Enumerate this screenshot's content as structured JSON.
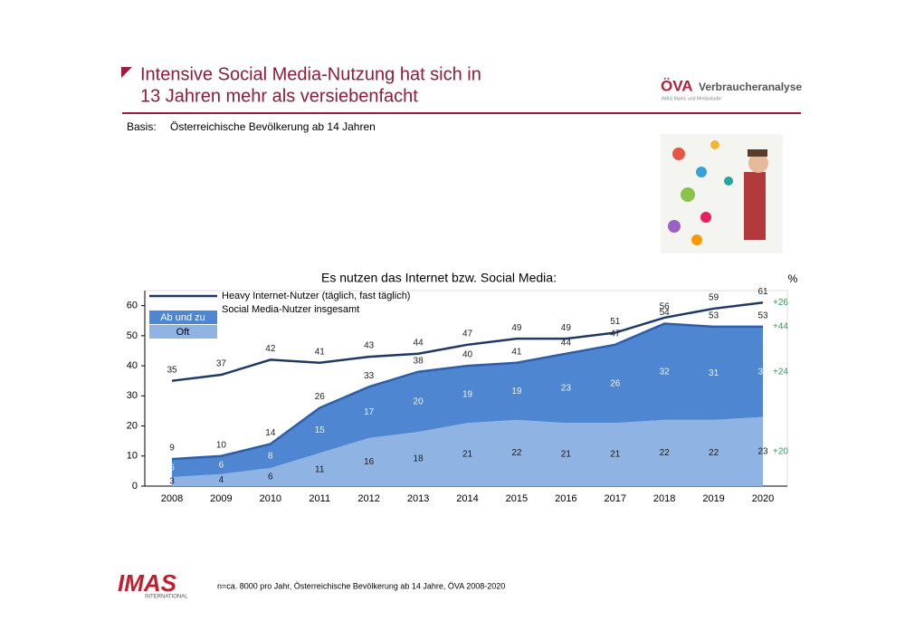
{
  "header": {
    "title_line1": "Intensive Social Media-Nutzung hat sich in",
    "title_line2": "13 Jahren mehr als versiebenfacht",
    "logo_brand": "ÖVA",
    "logo_name": "Verbraucheranalyse",
    "logo_sub": "IMAS Markt- und Mediastudie",
    "basis_label": "Basis:",
    "basis_text": "Österreichische Bevölkerung ab 14 Jahren"
  },
  "chart_data": {
    "type": "area",
    "title": "Es nutzen das Internet bzw. Social Media:",
    "unit": "%",
    "categories": [
      "2008",
      "2009",
      "2010",
      "2011",
      "2012",
      "2013",
      "2014",
      "2015",
      "2016",
      "2017",
      "2018",
      "2019",
      "2020"
    ],
    "ylim": [
      0,
      65
    ],
    "yticks": [
      0,
      10,
      20,
      30,
      40,
      50,
      60
    ],
    "change_color": "#2e9a5a",
    "series": [
      {
        "name": "Oft",
        "style": "stacked-area",
        "color": "#8fb4e3",
        "values": [
          3,
          4,
          6,
          11,
          16,
          18,
          21,
          22,
          21,
          21,
          22,
          22,
          23
        ],
        "change": "+20"
      },
      {
        "name": "Ab und zu",
        "style": "stacked-area",
        "color": "#4f86d2",
        "values": [
          6,
          6,
          8,
          15,
          17,
          20,
          19,
          19,
          23,
          26,
          32,
          31,
          30
        ],
        "change": "+24"
      },
      {
        "name": "Social Media-Nutzer insgesamt",
        "style": "line",
        "color": "#2f5ea6",
        "values": [
          9,
          10,
          14,
          26,
          33,
          38,
          40,
          41,
          44,
          47,
          54,
          53,
          53
        ],
        "change": "+44"
      },
      {
        "name": "Heavy Internet-Nutzer (täglich, fast täglich)",
        "style": "line",
        "color": "#1f3864",
        "values": [
          35,
          37,
          42,
          41,
          43,
          44,
          47,
          49,
          49,
          51,
          56,
          59,
          61
        ],
        "change": "+26"
      }
    ]
  },
  "footer": {
    "logo": "IMAS",
    "logo_sub": "INTERNATIONAL",
    "note": "n=ca. 8000 pro Jahr, Österreichische Bevölkerung ab 14 Jahre, ÖVA 2008-2020"
  }
}
